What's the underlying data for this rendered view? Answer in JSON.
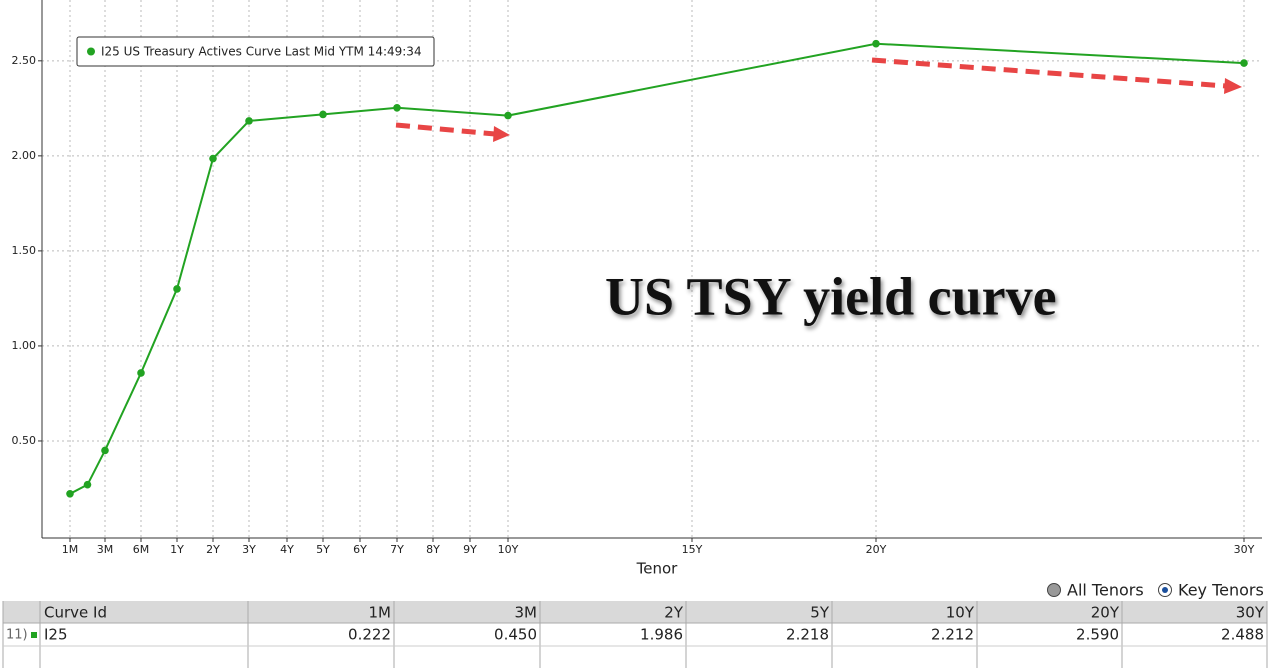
{
  "chart_data": {
    "type": "line",
    "x_label": "Tenor",
    "annotation": "US TSY yield curve",
    "xticks": [
      "1M",
      "3M",
      "6M",
      "1Y",
      "2Y",
      "3Y",
      "4Y",
      "5Y",
      "6Y",
      "7Y",
      "8Y",
      "9Y",
      "10Y",
      "15Y",
      "20Y",
      "30Y"
    ],
    "x": [
      "1M",
      null,
      "3M",
      "6M",
      "1Y",
      "2Y",
      "3Y",
      "5Y",
      "7Y",
      "10Y",
      "20Y",
      "30Y"
    ],
    "series": [
      {
        "name": "I25 US Treasury Actives Curve Last Mid YTM 14:49:34",
        "color": "#22a322",
        "values": [
          0.222,
          0.27,
          0.45,
          0.858,
          1.3,
          1.986,
          2.184,
          2.218,
          2.253,
          2.212,
          2.59,
          2.488
        ]
      }
    ],
    "ylim": [
      0,
      2.82
    ],
    "yticks": [
      {
        "value": 0.5,
        "label": "0.50"
      },
      {
        "value": 1,
        "label": "1.00"
      },
      {
        "value": 1.5,
        "label": "1.50"
      },
      {
        "value": 2,
        "label": "2.00"
      },
      {
        "value": 2.5,
        "label": "2.50"
      }
    ],
    "grid": true
  },
  "controls": {
    "options": [
      "All Tenors",
      "Key Tenors"
    ],
    "selected": "Key Tenors"
  },
  "table": {
    "headers": [
      "Curve Id",
      "1M",
      "3M",
      "2Y",
      "5Y",
      "10Y",
      "20Y",
      "30Y"
    ],
    "rows": [
      {
        "number": "11)",
        "cells": [
          "I25",
          "0.222",
          "0.450",
          "1.986",
          "2.218",
          "2.212",
          "2.590",
          "2.488"
        ]
      }
    ]
  }
}
